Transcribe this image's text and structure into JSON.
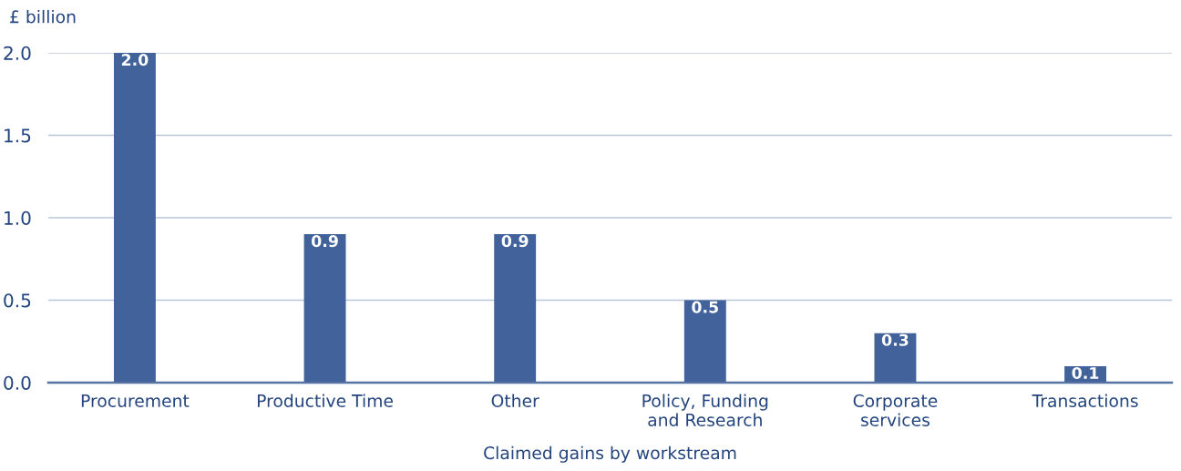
{
  "chart_data": {
    "type": "bar",
    "ylabel": "£ billion",
    "xlabel": "Claimed gains by workstream",
    "categories": [
      "Procurement",
      "Productive Time",
      "Other",
      "Policy, Funding\nand Research",
      "Corporate\nservices",
      "Transactions"
    ],
    "values": [
      2.0,
      0.9,
      0.9,
      0.5,
      0.3,
      0.1
    ],
    "value_labels": [
      "2.0",
      "0.9",
      "0.9",
      "0.5",
      "0.3",
      "0.1"
    ],
    "color": "#41629a",
    "ylim": [
      0,
      2.0
    ],
    "yticks": [
      {
        "value": 0,
        "label": "0.0"
      },
      {
        "value": 0.5,
        "label": "0.5"
      },
      {
        "value": 1.0,
        "label": "1.0"
      },
      {
        "value": 1.5,
        "label": "1.5"
      },
      {
        "value": 2.0,
        "label": "2.0"
      }
    ],
    "grid": "y",
    "legend": false
  }
}
